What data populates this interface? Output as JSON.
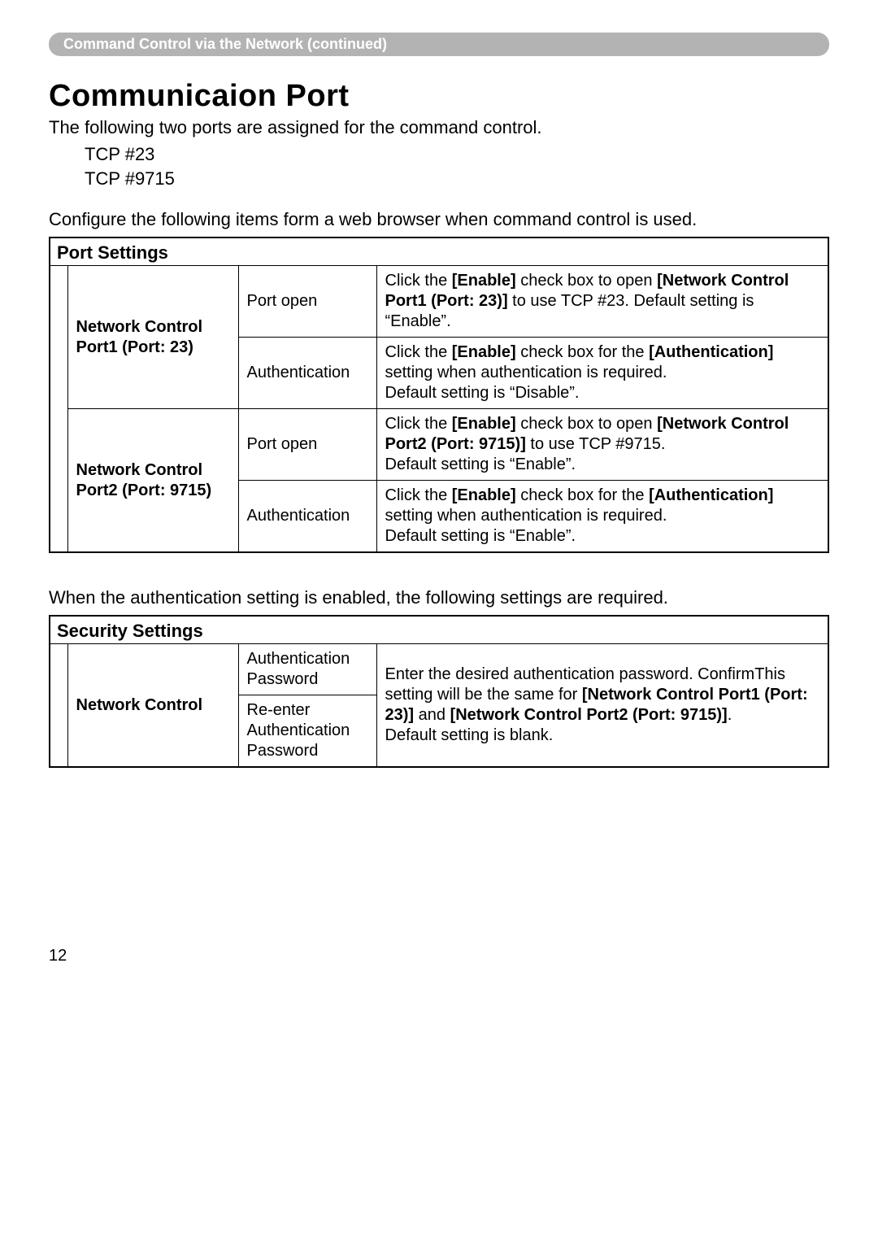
{
  "breadcrumb": "Command Control via the Network (continued)",
  "heading": "Communicaion Port",
  "intro": "The following two ports are assigned for the command control.",
  "port_a": "TCP #23",
  "port_b": "TCP #9715",
  "config_line": "Configure the following items form a web browser when command control is used.",
  "port_settings": {
    "title": "Port Settings",
    "rows": [
      {
        "header": "Network Control Port1 (Port: 23)",
        "sub": [
          {
            "label": "Port open",
            "desc_html": "Click the <b>[Enable]</b> check box to open <b>[Network Control Port1 (Port: 23)]</b> to use TCP #23. Default setting is “Enable”."
          },
          {
            "label": "Authentication",
            "desc_html": "Click the <b>[Enable]</b> check box for the <b>[Authentication]</b> setting when authentication is required.<br>Default setting is “Disable”."
          }
        ]
      },
      {
        "header": "Network Control Port2 (Port: 9715)",
        "sub": [
          {
            "label": "Port open",
            "desc_html": "Click the <b>[Enable]</b> check box to open <b>[Network Control Port2 (Port: 9715)]</b> to use TCP #9715.<br>Default setting is “Enable”."
          },
          {
            "label": "Authentication",
            "desc_html": "Click the <b>[Enable]</b> check box for the <b>[Authentication]</b> setting when authentication is required.<br>Default setting is “Enable”."
          }
        ]
      }
    ]
  },
  "auth_line": "When the authentication setting is enabled, the following settings are required.",
  "security_settings": {
    "title": "Security Settings",
    "row_header": "Network Control",
    "sub": [
      {
        "label": "Authentication Password"
      },
      {
        "label": "Re-enter Authentication Password"
      }
    ],
    "desc_html": "Enter the desired authentication password. ConfirmThis setting will be the same for <b>[Network Control Port1 (Port: 23)]</b> and <b>[Network Control Port2 (Port: 9715)]</b>.<br>Default setting is blank."
  },
  "page_number": "12"
}
